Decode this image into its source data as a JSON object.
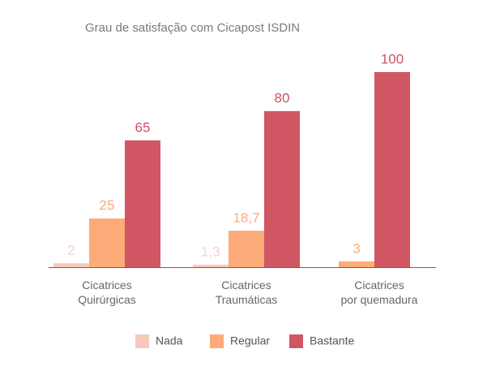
{
  "chart_data": {
    "type": "bar",
    "title": "Grau de satisfação com Cicapost ISDIN",
    "categories": [
      "Cicatrices\nQuirúrgicas",
      "Cicatrices\nTraumáticas",
      "Cicatrices\npor quemadura"
    ],
    "series": [
      {
        "name": "Nada",
        "color": "#f7c8bb",
        "values": [
          2,
          1.3,
          null
        ],
        "value_labels": [
          "2",
          "1,3",
          null
        ]
      },
      {
        "name": "Regular",
        "color": "#fdab78",
        "values": [
          25,
          18.7,
          3
        ],
        "value_labels": [
          "25",
          "18,7",
          "3"
        ]
      },
      {
        "name": "Bastante",
        "color": "#d15663",
        "values": [
          65,
          80,
          100
        ],
        "value_labels": [
          "65",
          "80",
          "100"
        ]
      }
    ],
    "ylim": [
      0,
      100
    ],
    "legend": "bottom"
  }
}
